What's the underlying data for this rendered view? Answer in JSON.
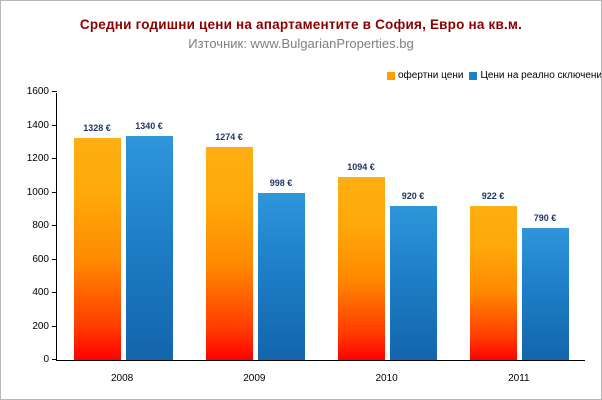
{
  "title": "Средни годишни цени на апартаментите в София, Евро на кв.м.",
  "subtitle": "Източник: www.BulgarianProperties.bg",
  "legend": [
    {
      "label": "офертни цени",
      "color": "#FF9C00"
    },
    {
      "label": "Цени на реално сключени сделки",
      "color": "#1E7FC4"
    }
  ],
  "chart_data": {
    "type": "bar",
    "title": "Средни годишни цени на апартаментите в София, Евро на кв.м.",
    "subtitle": "Източник: www.BulgarianProperties.bg",
    "categories": [
      "2008",
      "2009",
      "2010",
      "2011"
    ],
    "series": [
      {
        "name": "офертни цени",
        "values": [
          1328,
          1274,
          1094,
          922
        ],
        "gradient": [
          "#ff0000 0%",
          "#ff3c00 15%",
          "#ff8a00 45%",
          "#ffa90b 75%",
          "#ffae13 100%"
        ]
      },
      {
        "name": "Цени на реално сключени сделки",
        "values": [
          1340,
          998,
          920,
          790
        ],
        "gradient": [
          "#1365ac 0%",
          "#1e7fc6 55%",
          "#2f96da 100%"
        ]
      }
    ],
    "value_suffix": " €",
    "ylim": [
      0,
      1600
    ],
    "ytick_step": 200,
    "grid": false,
    "legend_position": "top-right",
    "colors": {
      "offer_bar": "#FF9C00",
      "deal_bar": "#1E7FC4",
      "title": "#8B0000",
      "subtitle": "#7F7F7F",
      "value_label": "#1F3864"
    }
  }
}
